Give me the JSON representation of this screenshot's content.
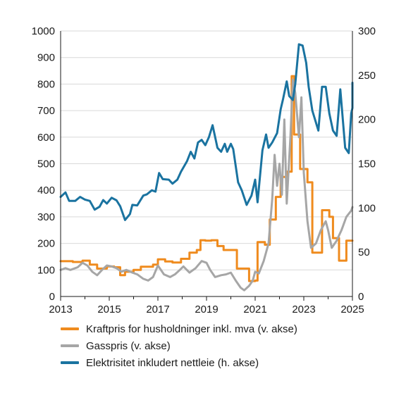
{
  "chart_data": {
    "type": "line",
    "xlim": [
      2013,
      2025
    ],
    "x_ticks": [
      "2013",
      "2015",
      "2017",
      "2019",
      "2021",
      "2023",
      "2025"
    ],
    "left_axis": {
      "ylim": [
        0,
        1000
      ],
      "ticks": [
        "0",
        "100",
        "200",
        "300",
        "400",
        "500",
        "600",
        "700",
        "800",
        "900",
        "1000"
      ]
    },
    "right_axis": {
      "ylim": [
        0,
        300
      ],
      "ticks": [
        "0",
        "50",
        "100",
        "150",
        "200",
        "250",
        "300"
      ]
    },
    "grid": "horizontal, left axis",
    "legend_position": "bottom",
    "series": [
      {
        "name": "Kraftpris for husholdninger inkl. mva (v. akse)",
        "axis": "left",
        "color": "#ef8b1e",
        "shape": "step",
        "points": [
          [
            2013.0,
            133
          ],
          [
            2013.5,
            130
          ],
          [
            2013.9,
            135
          ],
          [
            2014.2,
            120
          ],
          [
            2014.5,
            105
          ],
          [
            2014.9,
            113
          ],
          [
            2015.2,
            110
          ],
          [
            2015.45,
            80
          ],
          [
            2015.65,
            93
          ],
          [
            2016.0,
            100
          ],
          [
            2016.3,
            112
          ],
          [
            2016.8,
            120
          ],
          [
            2017.0,
            140
          ],
          [
            2017.3,
            132
          ],
          [
            2017.6,
            128
          ],
          [
            2017.95,
            142
          ],
          [
            2018.3,
            165
          ],
          [
            2018.6,
            175
          ],
          [
            2018.75,
            212
          ],
          [
            2018.95,
            210
          ],
          [
            2019.2,
            212
          ],
          [
            2019.45,
            190
          ],
          [
            2019.7,
            175
          ],
          [
            2020.0,
            175
          ],
          [
            2020.25,
            105
          ],
          [
            2020.6,
            105
          ],
          [
            2020.75,
            58
          ],
          [
            2021.0,
            60
          ],
          [
            2021.1,
            205
          ],
          [
            2021.4,
            195
          ],
          [
            2021.6,
            290
          ],
          [
            2021.85,
            375
          ],
          [
            2022.05,
            450
          ],
          [
            2022.3,
            470
          ],
          [
            2022.5,
            830
          ],
          [
            2022.6,
            610
          ],
          [
            2022.85,
            480
          ],
          [
            2023.15,
            430
          ],
          [
            2023.35,
            165
          ],
          [
            2023.75,
            325
          ],
          [
            2024.05,
            300
          ],
          [
            2024.2,
            220
          ],
          [
            2024.45,
            135
          ],
          [
            2024.75,
            210
          ],
          [
            2025.0,
            210
          ]
        ]
      },
      {
        "name": "Gasspris (v. akse)",
        "axis": "right",
        "color": "#a6a6a6",
        "shape": "line",
        "points": [
          [
            2013.0,
            30
          ],
          [
            2013.2,
            32
          ],
          [
            2013.4,
            30
          ],
          [
            2013.7,
            33
          ],
          [
            2013.9,
            38
          ],
          [
            2014.1,
            35
          ],
          [
            2014.3,
            28
          ],
          [
            2014.5,
            24
          ],
          [
            2014.7,
            30
          ],
          [
            2014.9,
            35
          ],
          [
            2015.1,
            34
          ],
          [
            2015.3,
            32
          ],
          [
            2015.5,
            28
          ],
          [
            2015.7,
            30
          ],
          [
            2015.95,
            27
          ],
          [
            2016.15,
            25
          ],
          [
            2016.4,
            20
          ],
          [
            2016.6,
            18
          ],
          [
            2016.8,
            22
          ],
          [
            2017.0,
            35
          ],
          [
            2017.25,
            25
          ],
          [
            2017.5,
            22
          ],
          [
            2017.7,
            25
          ],
          [
            2017.9,
            30
          ],
          [
            2018.05,
            34
          ],
          [
            2018.3,
            27
          ],
          [
            2018.55,
            32
          ],
          [
            2018.8,
            40
          ],
          [
            2019.0,
            38
          ],
          [
            2019.15,
            30
          ],
          [
            2019.35,
            22
          ],
          [
            2019.6,
            24
          ],
          [
            2019.8,
            25
          ],
          [
            2020.0,
            27
          ],
          [
            2020.2,
            18
          ],
          [
            2020.4,
            10
          ],
          [
            2020.55,
            7
          ],
          [
            2020.75,
            12
          ],
          [
            2020.9,
            18
          ],
          [
            2021.0,
            28
          ],
          [
            2021.15,
            26
          ],
          [
            2021.35,
            40
          ],
          [
            2021.55,
            60
          ],
          [
            2021.7,
            110
          ],
          [
            2021.8,
            160
          ],
          [
            2021.9,
            125
          ],
          [
            2022.0,
            150
          ],
          [
            2022.1,
            115
          ],
          [
            2022.2,
            200
          ],
          [
            2022.3,
            105
          ],
          [
            2022.45,
            180
          ],
          [
            2022.55,
            245
          ],
          [
            2022.65,
            230
          ],
          [
            2022.8,
            180
          ],
          [
            2022.9,
            225
          ],
          [
            2023.0,
            140
          ],
          [
            2023.15,
            85
          ],
          [
            2023.3,
            55
          ],
          [
            2023.5,
            60
          ],
          [
            2023.7,
            75
          ],
          [
            2023.9,
            85
          ],
          [
            2024.0,
            75
          ],
          [
            2024.15,
            55
          ],
          [
            2024.35,
            63
          ],
          [
            2024.55,
            75
          ],
          [
            2024.75,
            90
          ],
          [
            2024.95,
            97
          ],
          [
            2025.1,
            101
          ]
        ]
      },
      {
        "name": "Elektrisitet inkludert nettleie (h. akse)",
        "axis": "left",
        "color": "#1a73a0",
        "shape": "line",
        "points": [
          [
            2013.0,
            375
          ],
          [
            2013.2,
            392
          ],
          [
            2013.35,
            360
          ],
          [
            2013.6,
            360
          ],
          [
            2013.8,
            375
          ],
          [
            2014.0,
            365
          ],
          [
            2014.2,
            360
          ],
          [
            2014.4,
            327
          ],
          [
            2014.6,
            338
          ],
          [
            2014.75,
            363
          ],
          [
            2014.9,
            350
          ],
          [
            2015.1,
            372
          ],
          [
            2015.3,
            362
          ],
          [
            2015.45,
            340
          ],
          [
            2015.65,
            288
          ],
          [
            2015.85,
            310
          ],
          [
            2015.95,
            345
          ],
          [
            2016.15,
            343
          ],
          [
            2016.4,
            380
          ],
          [
            2016.55,
            385
          ],
          [
            2016.75,
            400
          ],
          [
            2016.9,
            395
          ],
          [
            2017.05,
            465
          ],
          [
            2017.2,
            442
          ],
          [
            2017.45,
            440
          ],
          [
            2017.6,
            425
          ],
          [
            2017.8,
            440
          ],
          [
            2017.95,
            470
          ],
          [
            2018.2,
            510
          ],
          [
            2018.35,
            545
          ],
          [
            2018.5,
            520
          ],
          [
            2018.65,
            580
          ],
          [
            2018.8,
            590
          ],
          [
            2018.95,
            570
          ],
          [
            2019.1,
            600
          ],
          [
            2019.25,
            645
          ],
          [
            2019.45,
            560
          ],
          [
            2019.6,
            545
          ],
          [
            2019.75,
            575
          ],
          [
            2019.85,
            545
          ],
          [
            2020.0,
            575
          ],
          [
            2020.1,
            555
          ],
          [
            2020.3,
            430
          ],
          [
            2020.45,
            400
          ],
          [
            2020.65,
            345
          ],
          [
            2020.85,
            380
          ],
          [
            2021.0,
            440
          ],
          [
            2021.1,
            355
          ],
          [
            2021.3,
            550
          ],
          [
            2021.45,
            610
          ],
          [
            2021.55,
            560
          ],
          [
            2021.7,
            580
          ],
          [
            2021.9,
            615
          ],
          [
            2022.05,
            705
          ],
          [
            2022.15,
            745
          ],
          [
            2022.3,
            810
          ],
          [
            2022.4,
            755
          ],
          [
            2022.55,
            740
          ],
          [
            2022.65,
            800
          ],
          [
            2022.8,
            950
          ],
          [
            2022.95,
            945
          ],
          [
            2023.1,
            880
          ],
          [
            2023.2,
            790
          ],
          [
            2023.35,
            700
          ],
          [
            2023.6,
            625
          ],
          [
            2023.75,
            790
          ],
          [
            2023.9,
            790
          ],
          [
            2024.05,
            690
          ],
          [
            2024.2,
            625
          ],
          [
            2024.35,
            605
          ],
          [
            2024.5,
            780
          ],
          [
            2024.7,
            560
          ],
          [
            2024.85,
            540
          ],
          [
            2024.95,
            690
          ],
          [
            2025.05,
            710
          ],
          [
            2025.2,
            745
          ],
          [
            2025.3,
            805
          ]
        ]
      }
    ]
  }
}
